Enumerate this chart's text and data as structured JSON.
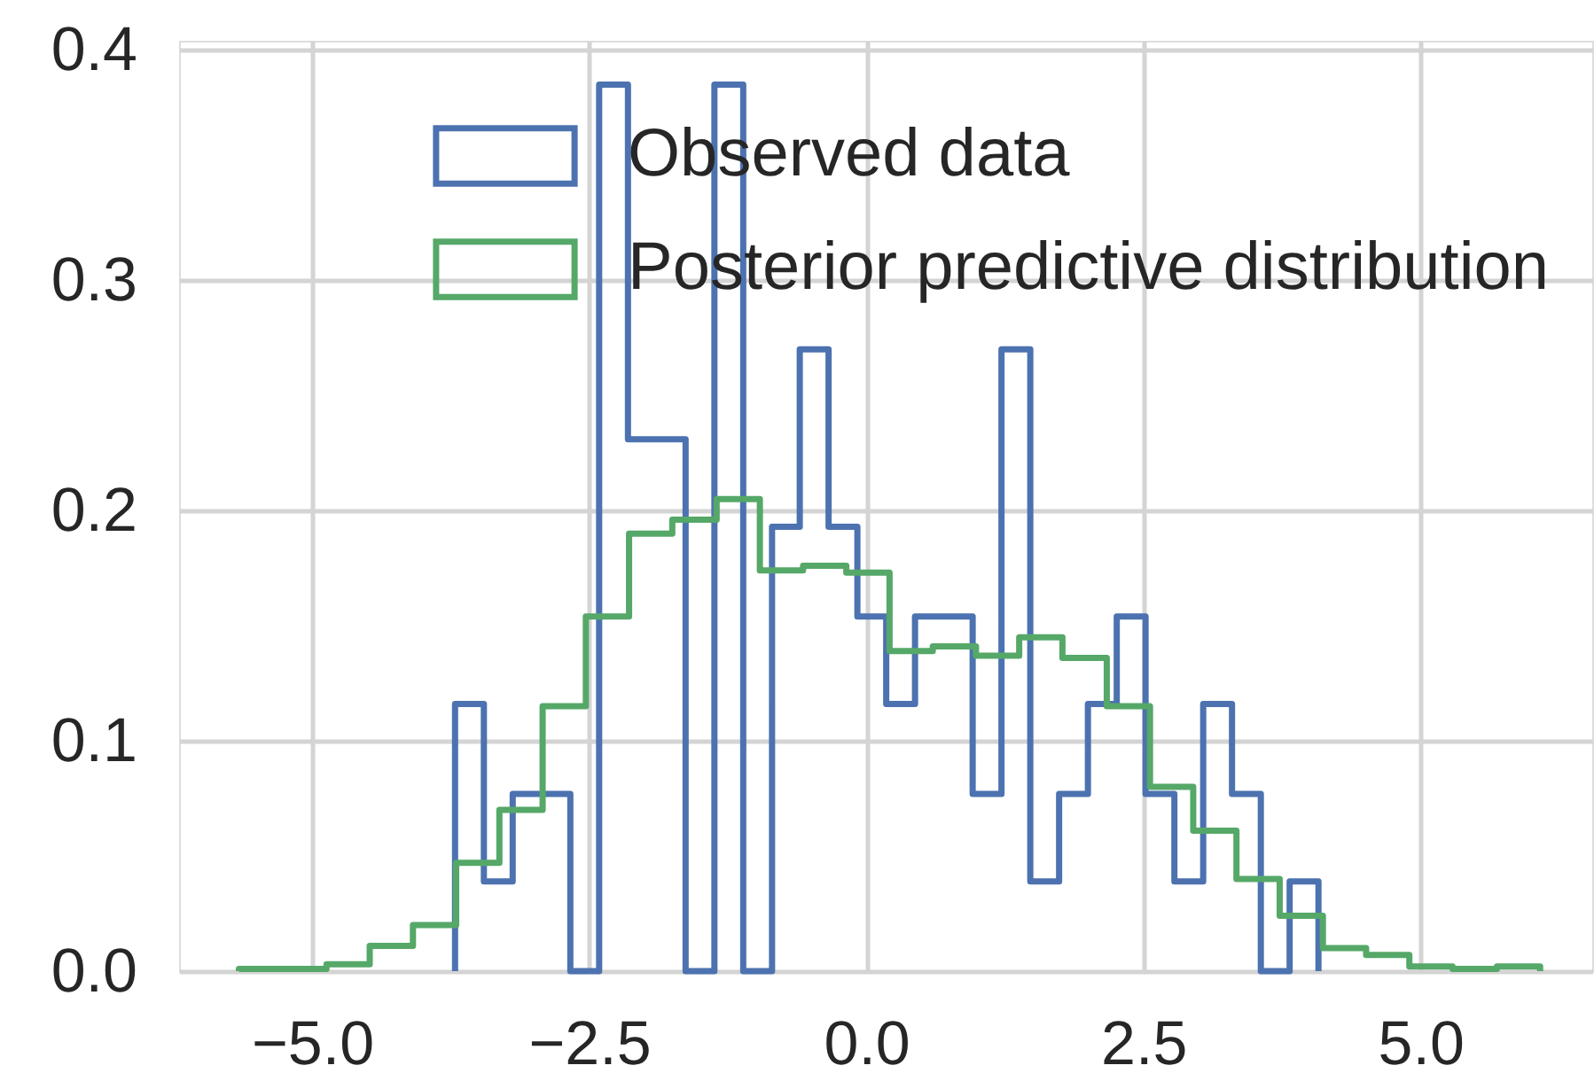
{
  "chart_data": {
    "type": "histogram",
    "bins": [
      -5.66,
      -5.26,
      -4.87,
      -4.48,
      -4.09,
      -3.7,
      -3.31,
      -2.92,
      -2.53,
      -2.14,
      -1.75,
      -1.35,
      -0.96,
      -0.57,
      -0.18,
      0.21,
      0.6,
      0.99,
      1.38,
      1.77,
      2.17,
      2.56,
      2.95,
      3.34,
      3.73,
      4.12,
      4.51,
      4.9,
      5.29,
      5.69,
      6.08
    ],
    "series": [
      {
        "name": "Observed data",
        "color": "#4c72b0",
        "bins": [
          -3.71,
          -3.45,
          -3.19,
          -2.93,
          -2.67,
          -2.41,
          -2.15,
          -1.89,
          -1.63,
          -1.37,
          -1.11,
          -0.85,
          -0.6,
          -0.34,
          -0.08,
          0.18,
          0.44,
          0.7,
          0.96,
          1.22,
          1.48,
          1.74,
          2.0,
          2.26,
          2.52,
          2.78,
          3.04,
          3.3,
          3.56,
          3.82,
          4.08
        ],
        "values": [
          0.116,
          0.039,
          0.077,
          0.077,
          0,
          0.385,
          0.231,
          0.231,
          0,
          0.385,
          0,
          0.193,
          0.27,
          0.193,
          0.154,
          0.116,
          0.154,
          0.154,
          0.077,
          0.27,
          0.039,
          0.077,
          0.116,
          0.154,
          0.077,
          0.039,
          0.116,
          0.077,
          0,
          0.039
        ]
      },
      {
        "name": "Posterior predictive distribution",
        "color": "#55a868",
        "values": [
          0.001,
          0.001,
          0.003,
          0.011,
          0.02,
          0.047,
          0.07,
          0.115,
          0.154,
          0.19,
          0.196,
          0.205,
          0.174,
          0.176,
          0.173,
          0.139,
          0.141,
          0.137,
          0.145,
          0.136,
          0.115,
          0.08,
          0.061,
          0.04,
          0.024,
          0.01,
          0.007,
          0.002,
          0.001,
          0.002
        ]
      }
    ],
    "xlim": [
      -6.2,
      6.55
    ],
    "ylim": [
      0,
      0.404
    ],
    "xticks": [
      {
        "value": -5,
        "label": "−5.0"
      },
      {
        "value": -2.5,
        "label": "−2.5"
      },
      {
        "value": 0,
        "label": "0.0"
      },
      {
        "value": 2.5,
        "label": "2.5"
      },
      {
        "value": 5,
        "label": "5.0"
      }
    ],
    "yticks": [
      {
        "value": 0,
        "label": "0.0"
      },
      {
        "value": 0.1,
        "label": "0.1"
      },
      {
        "value": 0.2,
        "label": "0.2"
      },
      {
        "value": 0.3,
        "label": "0.3"
      },
      {
        "value": 0.4,
        "label": "0.4"
      }
    ],
    "grid": true,
    "legend": "top right",
    "line_style": "solid"
  }
}
